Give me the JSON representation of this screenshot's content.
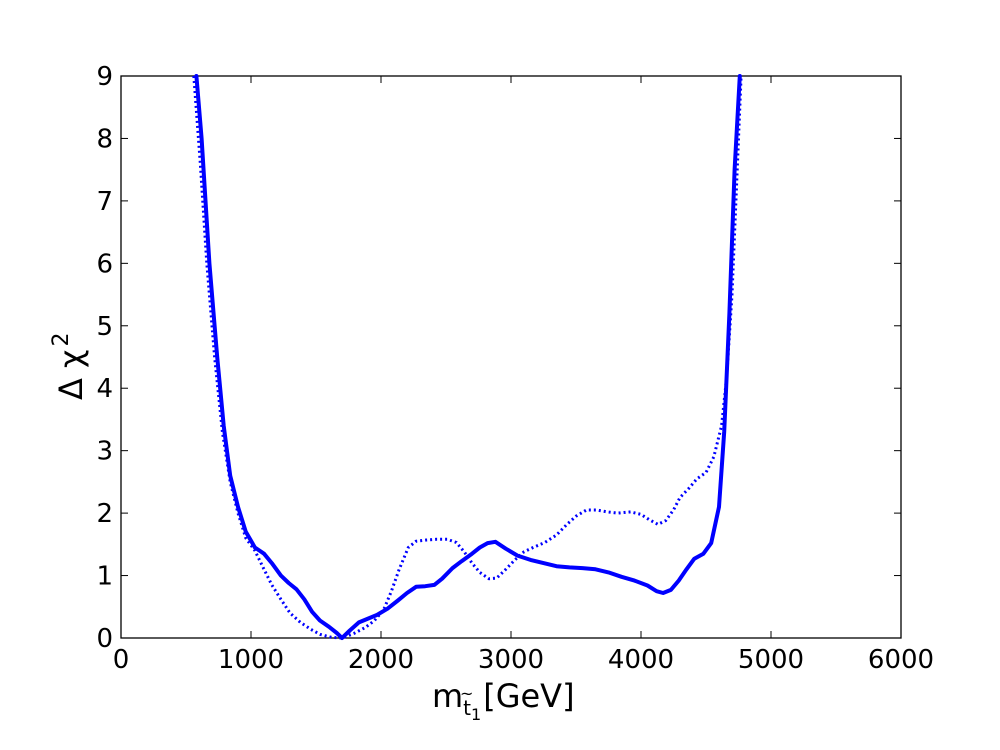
{
  "chart_data": {
    "type": "line",
    "xlabel": {
      "main": "m",
      "sub1": "t",
      "tilde": "~",
      "sub2": "1",
      "unit": "[GeV]"
    },
    "ylabel": {
      "main": "Δ χ",
      "sup": "2"
    },
    "xlim": [
      0,
      6000
    ],
    "ylim": [
      0,
      9
    ],
    "xticks": [
      0,
      1000,
      2000,
      3000,
      4000,
      5000,
      6000
    ],
    "yticks": [
      0,
      1,
      2,
      3,
      4,
      5,
      6,
      7,
      8,
      9
    ],
    "grid": false,
    "color": "#0000ff",
    "series": [
      {
        "style": "solid",
        "points": [
          [
            580,
            9.0
          ],
          [
            620,
            8.0
          ],
          [
            680,
            6.0
          ],
          [
            740,
            4.5
          ],
          [
            790,
            3.4
          ],
          [
            840,
            2.6
          ],
          [
            900,
            2.1
          ],
          [
            960,
            1.7
          ],
          [
            1030,
            1.45
          ],
          [
            1100,
            1.35
          ],
          [
            1160,
            1.2
          ],
          [
            1230,
            1.0
          ],
          [
            1290,
            0.88
          ],
          [
            1350,
            0.78
          ],
          [
            1410,
            0.62
          ],
          [
            1470,
            0.42
          ],
          [
            1530,
            0.28
          ],
          [
            1600,
            0.18
          ],
          [
            1660,
            0.08
          ],
          [
            1700,
            0.0
          ],
          [
            1760,
            0.12
          ],
          [
            1830,
            0.25
          ],
          [
            1900,
            0.31
          ],
          [
            1970,
            0.37
          ],
          [
            2050,
            0.47
          ],
          [
            2130,
            0.6
          ],
          [
            2200,
            0.72
          ],
          [
            2270,
            0.82
          ],
          [
            2340,
            0.83
          ],
          [
            2410,
            0.85
          ],
          [
            2470,
            0.95
          ],
          [
            2550,
            1.12
          ],
          [
            2620,
            1.23
          ],
          [
            2700,
            1.35
          ],
          [
            2760,
            1.45
          ],
          [
            2820,
            1.52
          ],
          [
            2880,
            1.54
          ],
          [
            2960,
            1.43
          ],
          [
            3050,
            1.32
          ],
          [
            3150,
            1.25
          ],
          [
            3250,
            1.2
          ],
          [
            3350,
            1.15
          ],
          [
            3450,
            1.13
          ],
          [
            3550,
            1.12
          ],
          [
            3650,
            1.1
          ],
          [
            3750,
            1.05
          ],
          [
            3850,
            0.98
          ],
          [
            3950,
            0.92
          ],
          [
            4050,
            0.84
          ],
          [
            4120,
            0.75
          ],
          [
            4170,
            0.72
          ],
          [
            4230,
            0.77
          ],
          [
            4290,
            0.92
          ],
          [
            4350,
            1.1
          ],
          [
            4410,
            1.27
          ],
          [
            4480,
            1.35
          ],
          [
            4540,
            1.52
          ],
          [
            4600,
            2.1
          ],
          [
            4640,
            3.3
          ],
          [
            4680,
            5.2
          ],
          [
            4720,
            7.5
          ],
          [
            4760,
            9.0
          ]
        ]
      },
      {
        "style": "dotted",
        "points": [
          [
            560,
            9.0
          ],
          [
            610,
            7.6
          ],
          [
            660,
            6.0
          ],
          [
            720,
            4.5
          ],
          [
            780,
            3.3
          ],
          [
            840,
            2.5
          ],
          [
            900,
            2.0
          ],
          [
            960,
            1.6
          ],
          [
            1030,
            1.4
          ],
          [
            1100,
            1.1
          ],
          [
            1160,
            0.85
          ],
          [
            1230,
            0.62
          ],
          [
            1300,
            0.4
          ],
          [
            1380,
            0.25
          ],
          [
            1460,
            0.14
          ],
          [
            1530,
            0.06
          ],
          [
            1620,
            0.01
          ],
          [
            1700,
            0.0
          ],
          [
            1790,
            0.07
          ],
          [
            1880,
            0.17
          ],
          [
            1950,
            0.28
          ],
          [
            2020,
            0.45
          ],
          [
            2080,
            0.75
          ],
          [
            2140,
            1.1
          ],
          [
            2210,
            1.45
          ],
          [
            2270,
            1.55
          ],
          [
            2350,
            1.57
          ],
          [
            2430,
            1.58
          ],
          [
            2510,
            1.58
          ],
          [
            2580,
            1.53
          ],
          [
            2640,
            1.38
          ],
          [
            2700,
            1.2
          ],
          [
            2760,
            1.05
          ],
          [
            2830,
            0.95
          ],
          [
            2890,
            0.96
          ],
          [
            2960,
            1.1
          ],
          [
            3030,
            1.25
          ],
          [
            3100,
            1.38
          ],
          [
            3170,
            1.45
          ],
          [
            3260,
            1.53
          ],
          [
            3350,
            1.65
          ],
          [
            3430,
            1.82
          ],
          [
            3500,
            1.95
          ],
          [
            3580,
            2.05
          ],
          [
            3660,
            2.05
          ],
          [
            3740,
            2.02
          ],
          [
            3820,
            2.0
          ],
          [
            3920,
            2.02
          ],
          [
            4000,
            1.98
          ],
          [
            4060,
            1.9
          ],
          [
            4130,
            1.82
          ],
          [
            4190,
            1.88
          ],
          [
            4250,
            2.05
          ],
          [
            4300,
            2.25
          ],
          [
            4370,
            2.4
          ],
          [
            4430,
            2.55
          ],
          [
            4500,
            2.65
          ],
          [
            4560,
            2.9
          ],
          [
            4620,
            3.4
          ],
          [
            4660,
            4.2
          ],
          [
            4700,
            5.5
          ],
          [
            4740,
            7.5
          ],
          [
            4770,
            9.0
          ]
        ]
      }
    ]
  }
}
